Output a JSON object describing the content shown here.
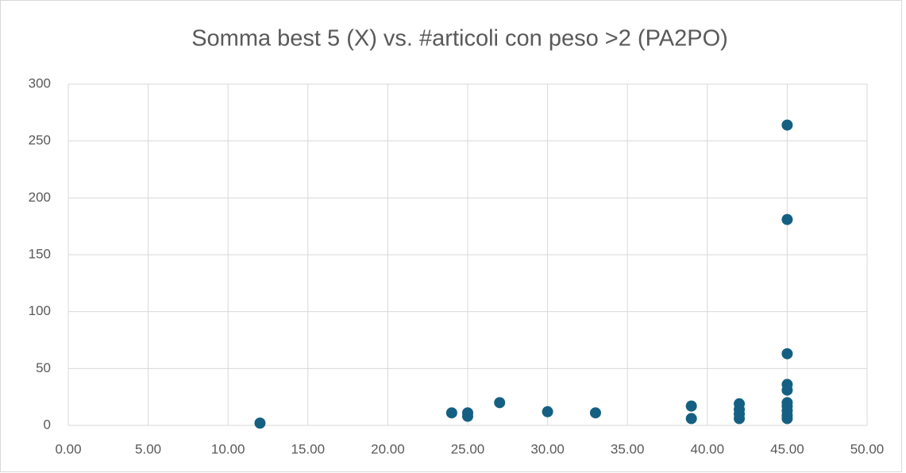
{
  "chart_data": {
    "type": "scatter",
    "title": "Somma best 5 (X) vs. #articoli con peso >2 (PA2PO)",
    "color": "#156082",
    "grid": true,
    "x": [
      12,
      24,
      25,
      25,
      27,
      30,
      33,
      39,
      39,
      42,
      42,
      42,
      42,
      45,
      45,
      45,
      45,
      45,
      45,
      45,
      45,
      45,
      45
    ],
    "y": [
      2,
      11,
      11,
      8,
      20,
      12,
      11,
      17,
      6,
      19,
      14,
      10,
      6,
      264,
      181,
      63,
      36,
      31,
      20,
      17,
      13,
      9,
      6
    ],
    "xlim": [
      0,
      50
    ],
    "xticks": [
      {
        "value": 0,
        "label": "0.00"
      },
      {
        "value": 5,
        "label": "5.00"
      },
      {
        "value": 10,
        "label": "10.00"
      },
      {
        "value": 15,
        "label": "15.00"
      },
      {
        "value": 20,
        "label": "20.00"
      },
      {
        "value": 25,
        "label": "25.00"
      },
      {
        "value": 30,
        "label": "30.00"
      },
      {
        "value": 35,
        "label": "35.00"
      },
      {
        "value": 40,
        "label": "40.00"
      },
      {
        "value": 45,
        "label": "45.00"
      },
      {
        "value": 50,
        "label": "50.00"
      }
    ],
    "ylim": [
      0,
      300
    ],
    "yticks": [
      0,
      50,
      100,
      150,
      200,
      250,
      300
    ]
  }
}
